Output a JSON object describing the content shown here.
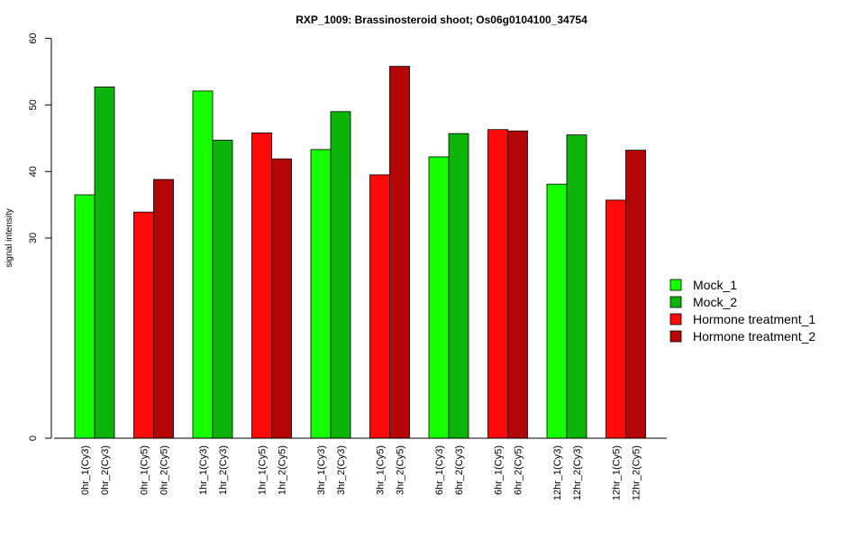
{
  "chart_data": {
    "type": "bar",
    "title": "RXP_1009: Brassinosteroid shoot; Os06g0104100_34754",
    "xlabel": "",
    "ylabel": "signal intensity",
    "ylim": [
      0,
      60
    ],
    "yticks": [
      0,
      30,
      40,
      50,
      60
    ],
    "axis_break": "between 0 and 30 (compressed lower section)",
    "legend_position": "right",
    "grid": false,
    "categories": [
      "0hr_1(Cy3)",
      "0hr_2(Cy3)",
      "0hr_1(Cy5)",
      "0hr_2(Cy5)",
      "1hr_1(Cy3)",
      "1hr_2(Cy3)",
      "1hr_1(Cy5)",
      "1hr_2(Cy5)",
      "3hr_1(Cy3)",
      "3hr_2(Cy3)",
      "3hr_1(Cy5)",
      "3hr_2(Cy5)",
      "6hr_1(Cy3)",
      "6hr_2(Cy3)",
      "6hr_1(Cy5)",
      "6hr_2(Cy5)",
      "12hr_1(Cy3)",
      "12hr_2(Cy3)",
      "12hr_1(Cy5)",
      "12hr_2(Cy5)"
    ],
    "values": [
      36.5,
      52.7,
      33.9,
      38.8,
      52.1,
      44.7,
      45.8,
      41.9,
      43.3,
      49.0,
      39.5,
      55.8,
      42.2,
      45.7,
      46.3,
      46.1,
      38.1,
      45.5,
      35.7,
      43.2
    ],
    "bar_series": [
      "Mock_1",
      "Mock_2",
      "Hormone treatment_1",
      "Hormone treatment_2",
      "Mock_1",
      "Mock_2",
      "Hormone treatment_1",
      "Hormone treatment_2",
      "Mock_1",
      "Mock_2",
      "Hormone treatment_1",
      "Hormone treatment_2",
      "Mock_1",
      "Mock_2",
      "Hormone treatment_1",
      "Hormone treatment_2",
      "Mock_1",
      "Mock_2",
      "Hormone treatment_1",
      "Hormone treatment_2"
    ],
    "legend": [
      {
        "name": "Mock_1",
        "color": "#14ff00"
      },
      {
        "name": "Mock_2",
        "color": "#0cb40a"
      },
      {
        "name": "Hormone treatment_1",
        "color": "#ff0a0a"
      },
      {
        "name": "Hormone treatment_2",
        "color": "#b40606"
      }
    ]
  }
}
